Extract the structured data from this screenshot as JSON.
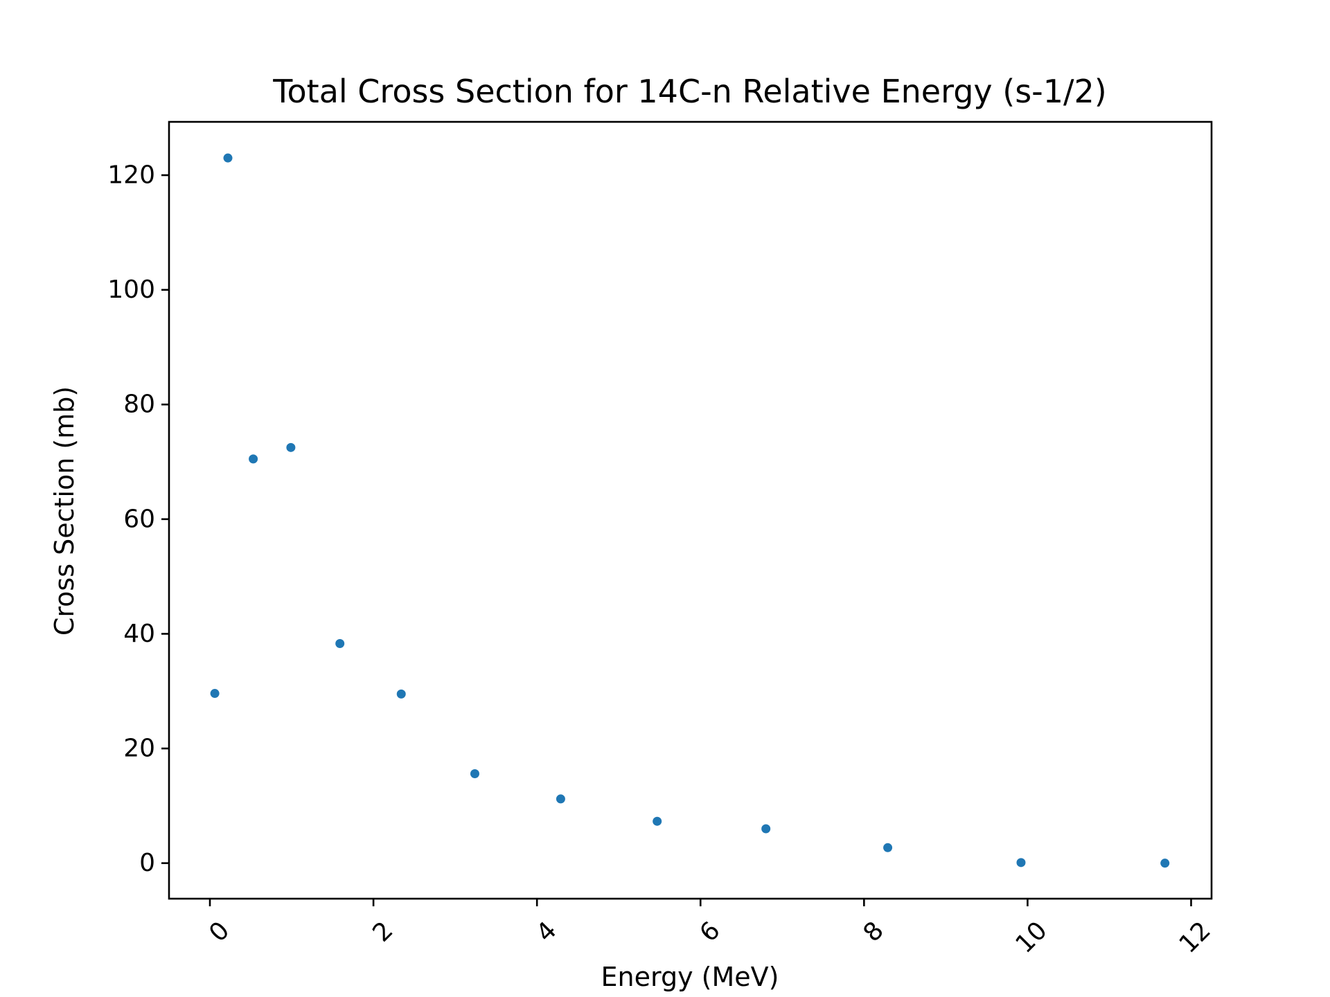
{
  "chart_data": {
    "type": "scatter",
    "title": "Total Cross Section for 14C-n Relative Energy (s-1/2)",
    "xlabel": "Energy (MeV)",
    "ylabel": "Cross Section (mb)",
    "xlim": [
      -0.5,
      12.25
    ],
    "ylim": [
      -6.2,
      129.3
    ],
    "xticks": [
      0,
      2,
      4,
      6,
      8,
      10,
      12
    ],
    "yticks": [
      0,
      20,
      40,
      60,
      80,
      100,
      120
    ],
    "xtick_labels": [
      "0",
      "2",
      "4",
      "6",
      "8",
      "10",
      "12"
    ],
    "ytick_labels": [
      "0",
      "20",
      "40",
      "60",
      "80",
      "100",
      "120"
    ],
    "xtick_rotation": 45,
    "grid": false,
    "series": [
      {
        "color": "#1f77b4",
        "points": [
          {
            "x": 0.06,
            "y": 29.6
          },
          {
            "x": 0.22,
            "y": 123.0
          },
          {
            "x": 0.53,
            "y": 70.5
          },
          {
            "x": 0.99,
            "y": 72.5
          },
          {
            "x": 1.59,
            "y": 38.3
          },
          {
            "x": 2.34,
            "y": 29.5
          },
          {
            "x": 3.24,
            "y": 15.6
          },
          {
            "x": 4.29,
            "y": 11.2
          },
          {
            "x": 5.47,
            "y": 7.3
          },
          {
            "x": 6.8,
            "y": 6.0
          },
          {
            "x": 8.29,
            "y": 2.7
          },
          {
            "x": 9.92,
            "y": 0.1
          },
          {
            "x": 11.68,
            "y": 0.0
          }
        ]
      }
    ]
  }
}
